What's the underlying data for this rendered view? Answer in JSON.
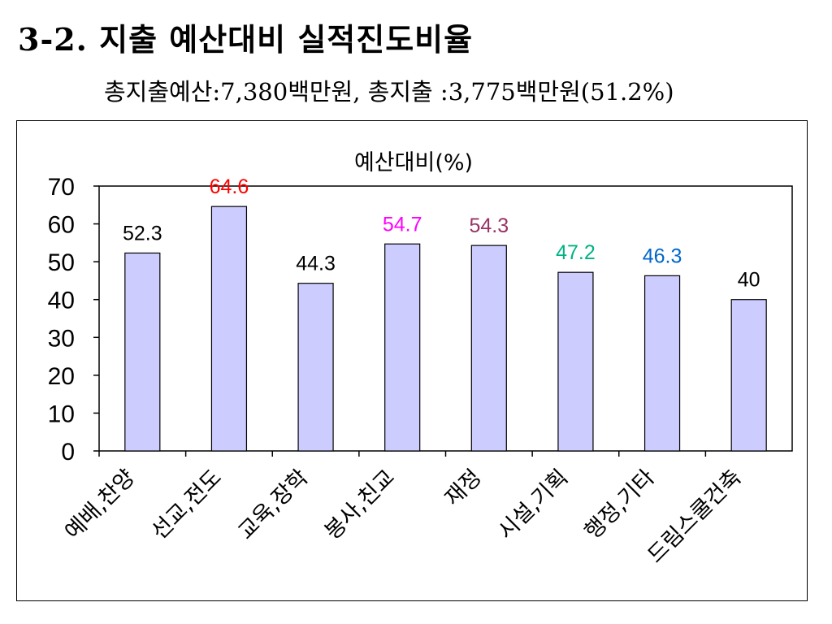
{
  "header": {
    "title": "3-2. 지출 예산대비 실적진도비율",
    "subtitle": "총지출예산:7,380백만원,  총지출 :3,775백만원(51.2%)"
  },
  "chart_data": {
    "type": "bar",
    "title": "예산대비(%)",
    "categories": [
      "예배,찬양",
      "선교,전도",
      "교육,장학",
      "봉사,친교",
      "재정",
      "시설,기획",
      "행정,기타",
      "드림스쿨건축"
    ],
    "values": [
      52.3,
      64.6,
      44.3,
      54.7,
      54.3,
      47.2,
      46.3,
      40
    ],
    "data_labels": [
      "52.3",
      "64.6",
      "44.3",
      "54.7",
      "54.3",
      "47.2",
      "46.3",
      "40"
    ],
    "label_colors": [
      "#000000",
      "#ff0000",
      "#000000",
      "#ff00ff",
      "#993366",
      "#00b383",
      "#0066cc",
      "#000000"
    ],
    "ylim": [
      0,
      70
    ],
    "yticks": [
      0,
      10,
      20,
      30,
      40,
      50,
      60,
      70
    ],
    "bar_color": "#ccccff",
    "bar_outline": "#000000",
    "grid": false,
    "legend": "none",
    "xlabel": "",
    "ylabel": ""
  }
}
